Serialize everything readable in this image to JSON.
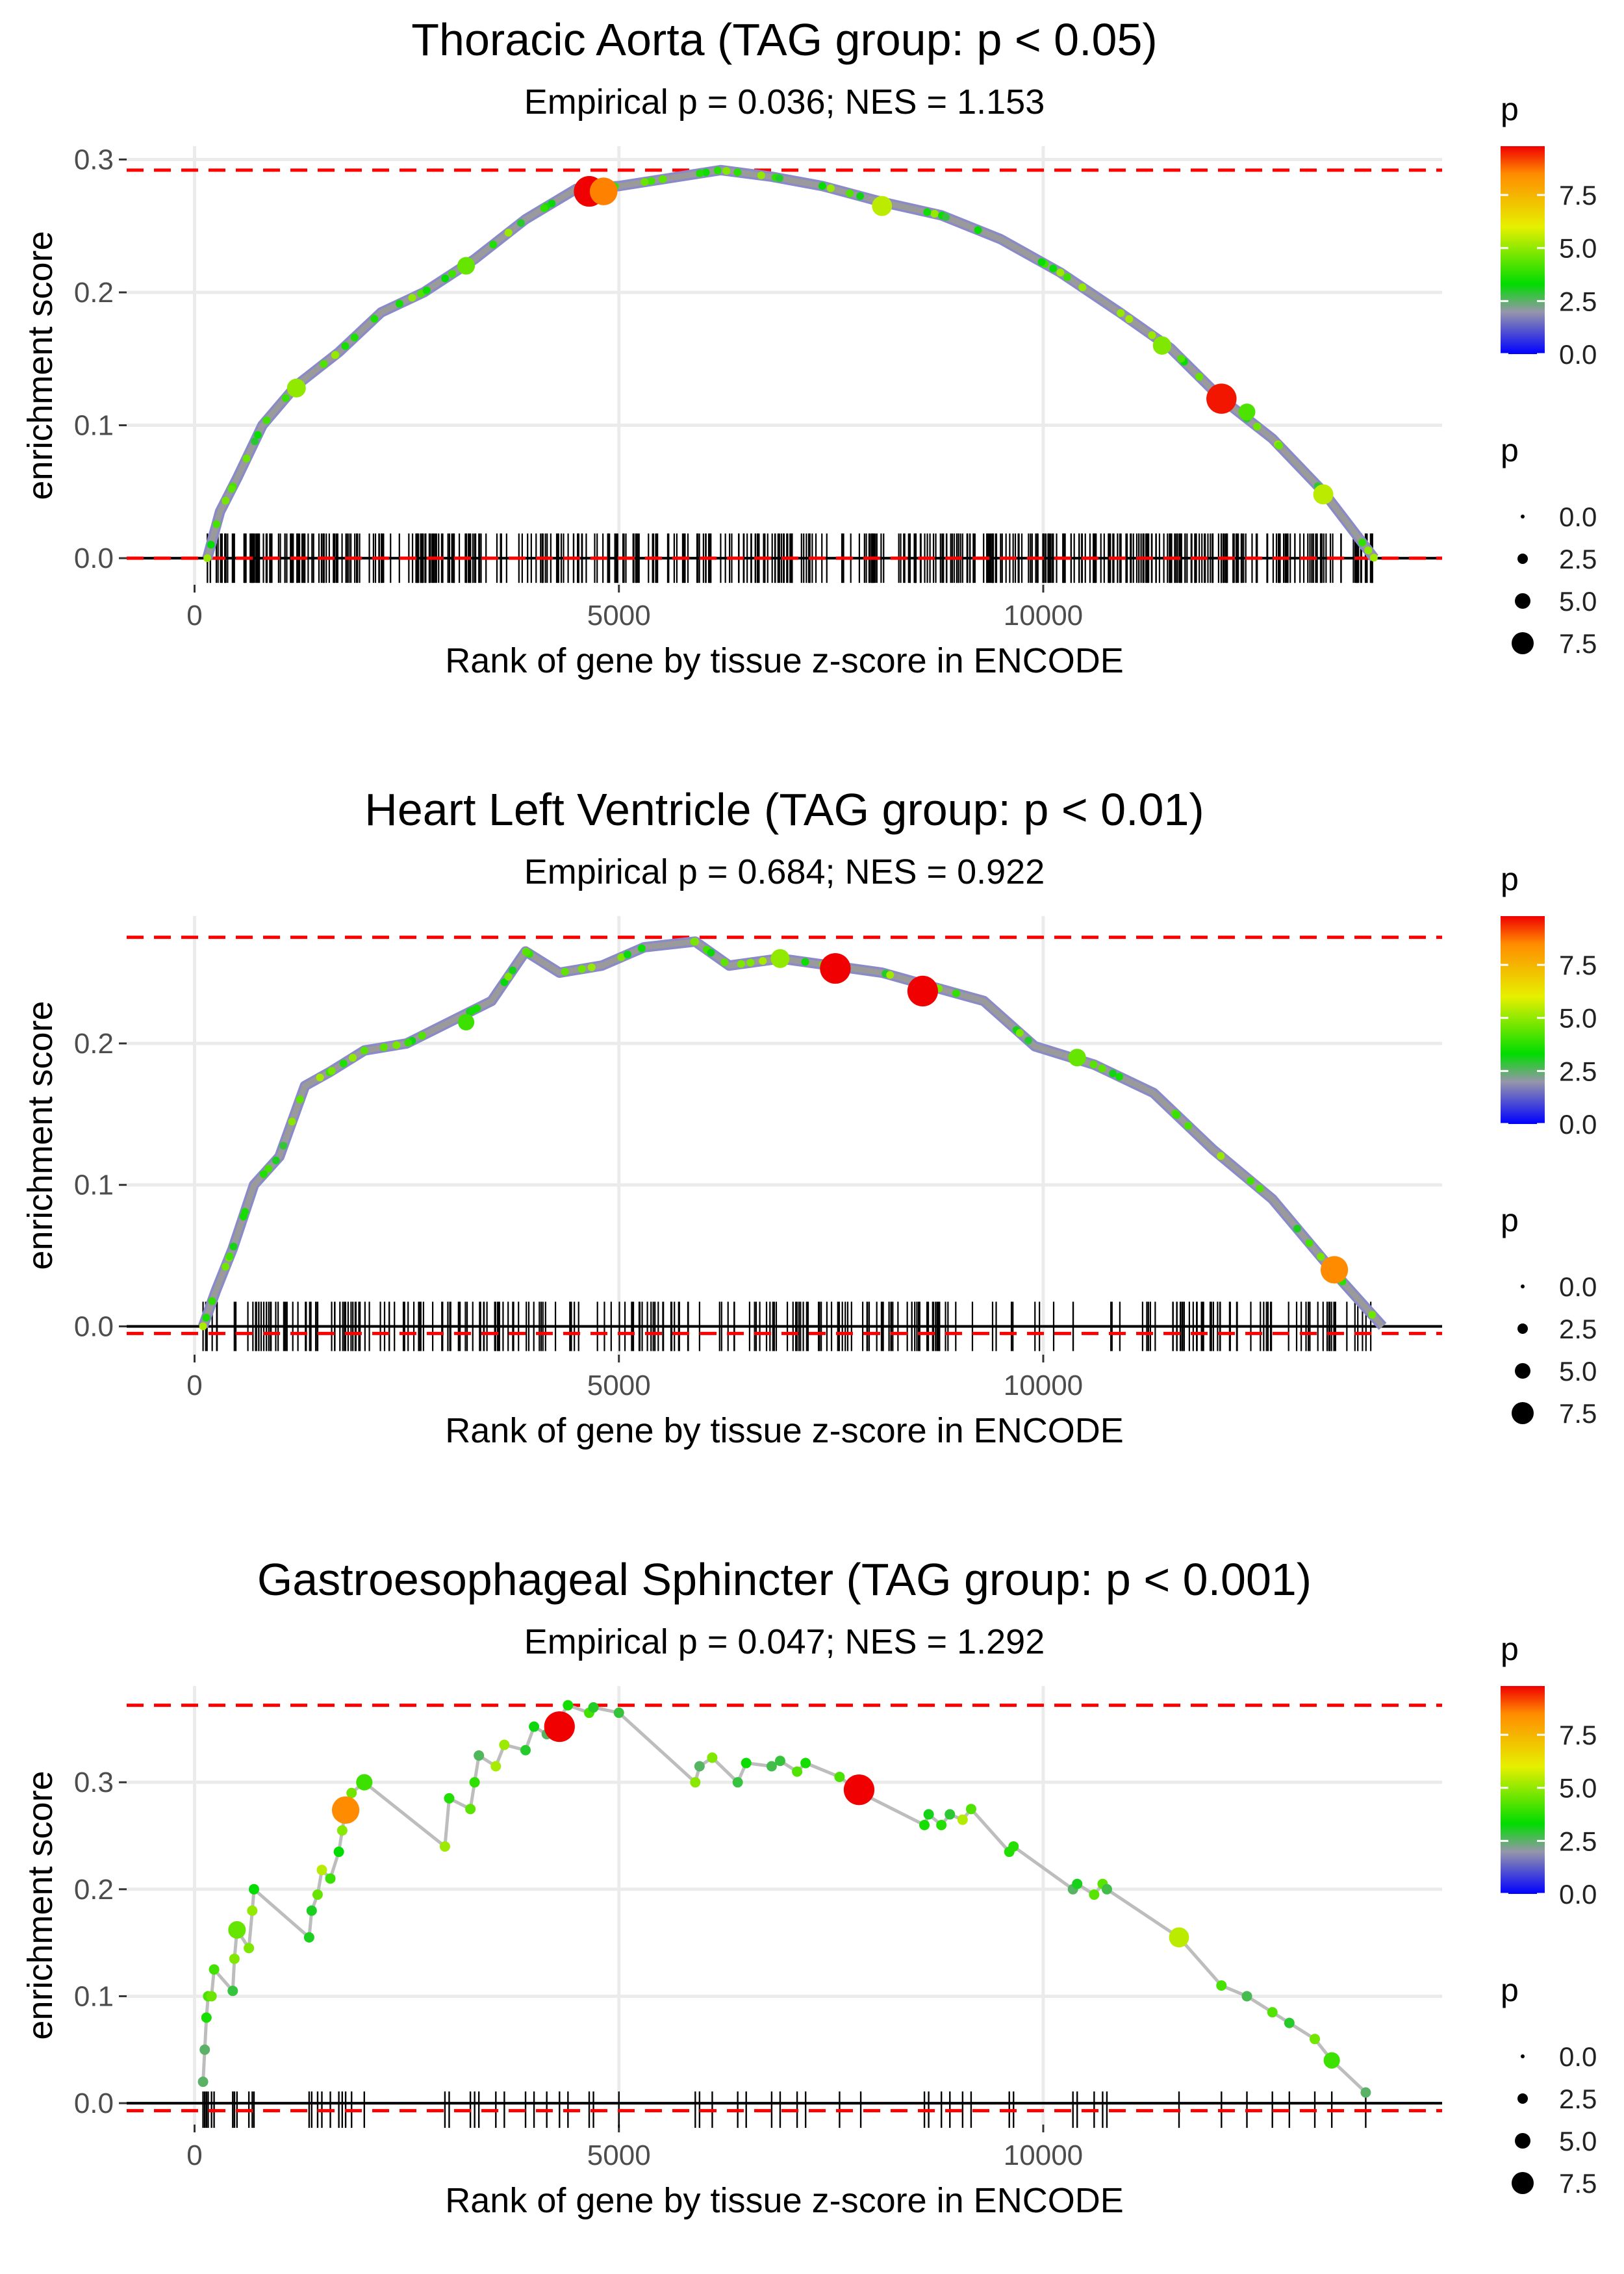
{
  "chart_data": [
    {
      "type": "line",
      "title": "Thoracic Aorta (TAG group: p < 0.05)",
      "subtitle": "Empirical p = 0.036; NES = 1.153",
      "xlabel": "Rank of gene by tissue z-score in ENCODE",
      "ylabel": "enrichment score",
      "xlim": [
        -800,
        14700
      ],
      "ylim": [
        -0.02,
        0.31
      ],
      "x_ticks": [
        0,
        5000,
        10000
      ],
      "x_tick_labels": [
        "0",
        "5000",
        "10000"
      ],
      "y_ticks": [
        0.0,
        0.1,
        0.2,
        0.3
      ],
      "y_tick_labels": [
        "0.0",
        "0.1",
        "0.2",
        "0.3"
      ],
      "max_es_line": 0.292,
      "min_es_line": 0.0,
      "curve": [
        [
          150,
          0.0
        ],
        [
          300,
          0.035
        ],
        [
          500,
          0.06
        ],
        [
          800,
          0.1
        ],
        [
          1200,
          0.13
        ],
        [
          1700,
          0.155
        ],
        [
          2200,
          0.185
        ],
        [
          2700,
          0.2
        ],
        [
          3300,
          0.225
        ],
        [
          3900,
          0.255
        ],
        [
          4500,
          0.278
        ],
        [
          5000,
          0.28
        ],
        [
          5600,
          0.286
        ],
        [
          6200,
          0.292
        ],
        [
          6800,
          0.287
        ],
        [
          7400,
          0.28
        ],
        [
          8100,
          0.268
        ],
        [
          8800,
          0.258
        ],
        [
          9500,
          0.24
        ],
        [
          10200,
          0.215
        ],
        [
          10900,
          0.185
        ],
        [
          11500,
          0.158
        ],
        [
          12100,
          0.12
        ],
        [
          12700,
          0.09
        ],
        [
          13300,
          0.05
        ],
        [
          13900,
          0.0
        ]
      ],
      "points": [
        [
          4650,
          0.276,
          9.8
        ],
        [
          4820,
          0.276,
          8.6
        ],
        [
          8100,
          0.265,
          5.5
        ],
        [
          12100,
          0.12,
          9.6
        ],
        [
          13300,
          0.048,
          5.5
        ],
        [
          1200,
          0.128,
          5.0
        ],
        [
          3200,
          0.22,
          4.5
        ],
        [
          11400,
          0.16,
          4.8
        ],
        [
          12400,
          0.11,
          4.2
        ]
      ],
      "barcode_density": "dense",
      "legend_color": {
        "title": "p",
        "ticks": [
          "0.0",
          "2.5",
          "5.0",
          "7.5"
        ],
        "max": 9.8
      },
      "legend_size": {
        "title": "p",
        "labels": [
          "0.0",
          "2.5",
          "5.0",
          "7.5"
        ]
      }
    },
    {
      "type": "line",
      "title": "Heart Left Ventricle (TAG group: p < 0.01)",
      "subtitle": "Empirical p = 0.684; NES = 0.922",
      "xlabel": "Rank of gene by tissue z-score in ENCODE",
      "ylabel": "enrichment score",
      "xlim": [
        -800,
        14700
      ],
      "ylim": [
        -0.02,
        0.29
      ],
      "x_ticks": [
        0,
        5000,
        10000
      ],
      "x_tick_labels": [
        "0",
        "5000",
        "10000"
      ],
      "y_ticks": [
        0.0,
        0.1,
        0.2
      ],
      "y_tick_labels": [
        "0.0",
        "0.1",
        "0.2"
      ],
      "max_es_line": 0.275,
      "min_es_line": -0.005,
      "curve": [
        [
          100,
          0.0
        ],
        [
          250,
          0.025
        ],
        [
          450,
          0.055
        ],
        [
          700,
          0.1
        ],
        [
          1000,
          0.12
        ],
        [
          1300,
          0.17
        ],
        [
          1600,
          0.18
        ],
        [
          2000,
          0.195
        ],
        [
          2500,
          0.2
        ],
        [
          3000,
          0.215
        ],
        [
          3500,
          0.23
        ],
        [
          3900,
          0.265
        ],
        [
          4300,
          0.25
        ],
        [
          4800,
          0.255
        ],
        [
          5300,
          0.268
        ],
        [
          5900,
          0.272
        ],
        [
          6300,
          0.255
        ],
        [
          6900,
          0.26
        ],
        [
          7500,
          0.255
        ],
        [
          8100,
          0.25
        ],
        [
          8700,
          0.24
        ],
        [
          9300,
          0.23
        ],
        [
          9900,
          0.198
        ],
        [
          10600,
          0.185
        ],
        [
          11300,
          0.165
        ],
        [
          12000,
          0.125
        ],
        [
          12700,
          0.09
        ],
        [
          13400,
          0.04
        ],
        [
          14000,
          0.0
        ]
      ],
      "points": [
        [
          7550,
          0.253,
          9.8
        ],
        [
          8580,
          0.237,
          9.8
        ],
        [
          13430,
          0.04,
          8.5
        ],
        [
          6900,
          0.26,
          5.0
        ],
        [
          3200,
          0.215,
          4.0
        ],
        [
          10400,
          0.19,
          4.5
        ]
      ],
      "barcode_density": "medium",
      "legend_color": {
        "title": "p",
        "ticks": [
          "0.0",
          "2.5",
          "5.0",
          "7.5"
        ],
        "max": 9.8
      },
      "legend_size": {
        "title": "p",
        "labels": [
          "0.0",
          "2.5",
          "5.0",
          "7.5"
        ]
      }
    },
    {
      "type": "line",
      "title": "Gastroesophageal Sphincter (TAG group: p < 0.001)",
      "subtitle": "Empirical p = 0.047; NES = 1.292",
      "xlabel": "Rank of gene by tissue z-score in ENCODE",
      "ylabel": "enrichment score",
      "xlim": [
        -800,
        14700
      ],
      "ylim": [
        -0.02,
        0.39
      ],
      "x_ticks": [
        0,
        5000,
        10000
      ],
      "x_tick_labels": [
        "0",
        "5000",
        "10000"
      ],
      "y_ticks": [
        0.0,
        0.1,
        0.2,
        0.3
      ],
      "y_tick_labels": [
        "0.0",
        "0.1",
        "0.2",
        "0.3"
      ],
      "max_es_line": 0.372,
      "min_es_line": -0.007,
      "curve": [
        [
          100,
          0.02
        ],
        [
          120,
          0.05
        ],
        [
          140,
          0.08
        ],
        [
          160,
          0.1
        ],
        [
          200,
          0.1
        ],
        [
          230,
          0.125
        ],
        [
          450,
          0.105
        ],
        [
          470,
          0.135
        ],
        [
          500,
          0.162
        ],
        [
          640,
          0.145
        ],
        [
          680,
          0.18
        ],
        [
          700,
          0.2
        ],
        [
          1350,
          0.155
        ],
        [
          1380,
          0.18
        ],
        [
          1450,
          0.195
        ],
        [
          1500,
          0.218
        ],
        [
          1600,
          0.21
        ],
        [
          1700,
          0.235
        ],
        [
          1740,
          0.255
        ],
        [
          1780,
          0.275
        ],
        [
          1850,
          0.29
        ],
        [
          2000,
          0.3
        ],
        [
          2950,
          0.24
        ],
        [
          3000,
          0.285
        ],
        [
          3250,
          0.275
        ],
        [
          3300,
          0.3
        ],
        [
          3350,
          0.325
        ],
        [
          3550,
          0.315
        ],
        [
          3650,
          0.335
        ],
        [
          3900,
          0.33
        ],
        [
          4000,
          0.352
        ],
        [
          4150,
          0.345
        ],
        [
          4300,
          0.36
        ],
        [
          4400,
          0.372
        ],
        [
          4650,
          0.365
        ],
        [
          4700,
          0.37
        ],
        [
          5000,
          0.365
        ],
        [
          5900,
          0.3
        ],
        [
          5950,
          0.315
        ],
        [
          6100,
          0.323
        ],
        [
          6400,
          0.3
        ],
        [
          6500,
          0.318
        ],
        [
          6800,
          0.315
        ],
        [
          6900,
          0.32
        ],
        [
          7100,
          0.31
        ],
        [
          7200,
          0.318
        ],
        [
          7600,
          0.305
        ],
        [
          7850,
          0.29
        ],
        [
          8600,
          0.26
        ],
        [
          8650,
          0.27
        ],
        [
          8800,
          0.26
        ],
        [
          8900,
          0.27
        ],
        [
          9050,
          0.265
        ],
        [
          9150,
          0.275
        ],
        [
          9600,
          0.235
        ],
        [
          9650,
          0.24
        ],
        [
          10350,
          0.2
        ],
        [
          10400,
          0.205
        ],
        [
          10600,
          0.195
        ],
        [
          10700,
          0.205
        ],
        [
          10750,
          0.2
        ],
        [
          11600,
          0.155
        ],
        [
          12100,
          0.11
        ],
        [
          12400,
          0.1
        ],
        [
          12700,
          0.085
        ],
        [
          12900,
          0.075
        ],
        [
          13200,
          0.06
        ],
        [
          13400,
          0.04
        ],
        [
          13800,
          0.01
        ]
      ],
      "points": [
        [
          4300,
          0.352,
          9.8
        ],
        [
          7830,
          0.293,
          9.8
        ],
        [
          1780,
          0.274,
          8.5
        ],
        [
          11600,
          0.155,
          5.5
        ],
        [
          500,
          0.162,
          4.5
        ],
        [
          2000,
          0.3,
          4.0
        ],
        [
          13400,
          0.04,
          4.0
        ]
      ],
      "barcode_density": "sparse",
      "legend_color": {
        "title": "p",
        "ticks": [
          "0.0",
          "2.5",
          "5.0",
          "7.5"
        ],
        "max": 9.8
      },
      "legend_size": {
        "title": "p",
        "labels": [
          "0.0",
          "2.5",
          "5.0",
          "7.5"
        ]
      }
    }
  ]
}
